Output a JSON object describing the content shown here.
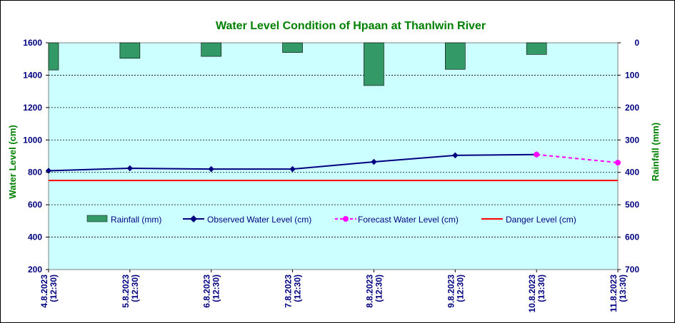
{
  "chart_data": {
    "type": "bar+line",
    "title": "Water Level Condition of Hpaan at Thanlwin River",
    "ylabel_left": "Water Level (cm)",
    "ylabel_right": "Rainfall (mm)",
    "ylim_left": [
      200,
      1600
    ],
    "yticks_left": [
      200,
      400,
      600,
      800,
      1000,
      1200,
      1400,
      1600
    ],
    "ylim_right": [
      0,
      700
    ],
    "yticks_right": [
      0,
      100,
      200,
      300,
      400,
      500,
      600,
      700
    ],
    "right_axis_inverted": true,
    "grid": true,
    "legend_position": "inside-middle",
    "categories": [
      {
        "date": "4.8.2023",
        "time": "(12:30)"
      },
      {
        "date": "5.8.2023",
        "time": "(12:30)"
      },
      {
        "date": "6.8.2023",
        "time": "(12:30)"
      },
      {
        "date": "7.8.2023",
        "time": "(12:30)"
      },
      {
        "date": "8.8.2023",
        "time": "(12:30)"
      },
      {
        "date": "9.8.2023",
        "time": "(12:30)"
      },
      {
        "date": "10.8.2023",
        "time": "(13:30)"
      },
      {
        "date": "11.8.2023",
        "time": "(13:30)"
      }
    ],
    "rainfall": {
      "name": "Rainfall (mm)",
      "color": "#339966",
      "values": [
        84,
        48,
        42,
        30,
        132,
        82,
        36
      ]
    },
    "observed": {
      "name": "Observed Water Level (cm)",
      "color": "#000080",
      "values": [
        810,
        825,
        820,
        820,
        865,
        905,
        910
      ]
    },
    "forecast": {
      "name": "Forecast Water Level (cm)",
      "color": "#ff00ff",
      "points": [
        {
          "i": 6,
          "v": 910
        },
        {
          "i": 7,
          "v": 860
        }
      ]
    },
    "danger": {
      "name": "Danger Level (cm)",
      "color": "#ff0000",
      "value": 750
    },
    "plot_background": "#ccffff"
  }
}
